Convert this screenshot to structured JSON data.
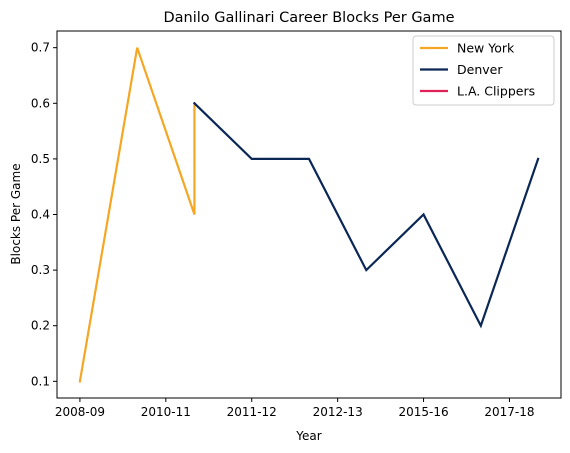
{
  "chart_data": {
    "type": "line",
    "title": "Danilo Gallinari Career Blocks Per Game",
    "xlabel": "Year",
    "ylabel": "Blocks Per Game",
    "x_tick_labels": [
      "2008-09",
      "2010-11",
      "2011-12",
      "2012-13",
      "2015-16",
      "2017-18"
    ],
    "x_tick_positions": [
      0,
      1.5,
      3,
      4.5,
      6,
      7.5
    ],
    "xlim": [
      -0.4,
      8.4
    ],
    "ylim": [
      0.07,
      0.73
    ],
    "y_ticks": [
      0.1,
      0.2,
      0.3,
      0.4,
      0.5,
      0.6,
      0.7
    ],
    "grid": false,
    "legend_position": "top-right",
    "series": [
      {
        "name": "New York",
        "color": "#f5a623",
        "points": [
          {
            "x": 0,
            "y": 0.1
          },
          {
            "x": 1,
            "y": 0.7
          },
          {
            "x": 2,
            "y": 0.4
          },
          {
            "x": 2,
            "y": 0.6
          }
        ]
      },
      {
        "name": "Denver",
        "color": "#0a2756",
        "points": [
          {
            "x": 2,
            "y": 0.6
          },
          {
            "x": 3,
            "y": 0.5
          },
          {
            "x": 4,
            "y": 0.5
          },
          {
            "x": 5,
            "y": 0.3
          },
          {
            "x": 6,
            "y": 0.4
          },
          {
            "x": 7,
            "y": 0.2
          },
          {
            "x": 8,
            "y": 0.5
          }
        ]
      },
      {
        "name": "L.A. Clippers",
        "color": "#e0215a",
        "points": []
      }
    ]
  }
}
